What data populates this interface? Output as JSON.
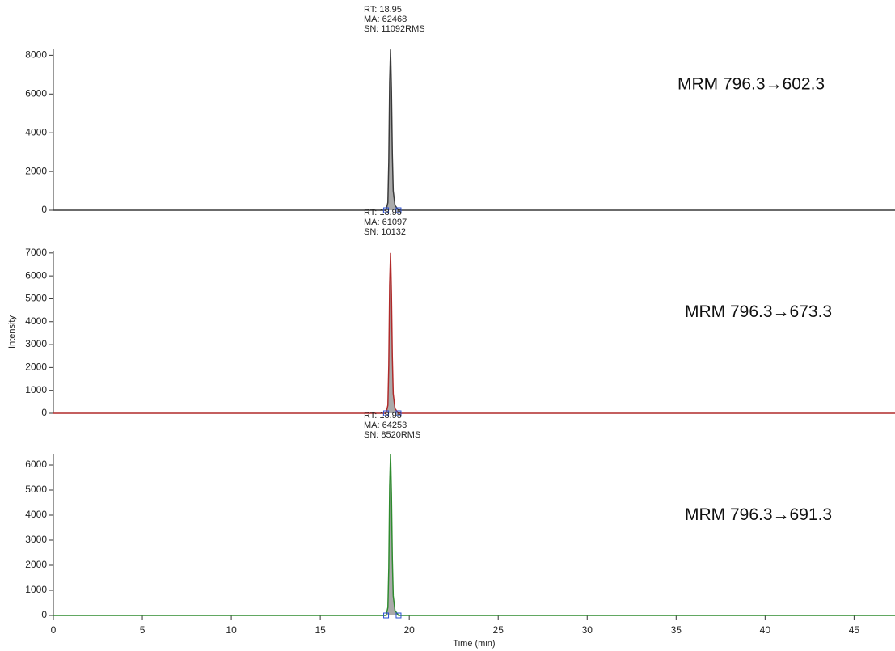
{
  "chart_data": [
    {
      "type": "line",
      "title": "MRM 796.3→602.3",
      "annotations": [
        "RT: 18.95",
        "MA: 62468",
        "SN: 11092RMS"
      ],
      "x": [
        0,
        18.7,
        18.8,
        18.85,
        18.9,
        18.95,
        19.0,
        19.05,
        19.1,
        19.2,
        19.4,
        47.3
      ],
      "values": [
        0,
        0,
        400,
        2500,
        6600,
        8300,
        6200,
        2900,
        1000,
        250,
        0,
        0
      ],
      "color": "#3a3a3a",
      "peak_limits": [
        18.7,
        19.4
      ],
      "xlim": [
        0,
        47.3
      ],
      "ylim": [
        0,
        8350
      ],
      "yticks": [
        0,
        2000,
        4000,
        6000,
        8000
      ]
    },
    {
      "type": "line",
      "title": "MRM 796.3→673.3",
      "ylabel": "Intensity",
      "annotations": [
        "RT: 18.95",
        "MA: 61097",
        "SN: 10132"
      ],
      "x": [
        0,
        18.7,
        18.8,
        18.85,
        18.9,
        18.95,
        19.0,
        19.05,
        19.1,
        19.2,
        19.4,
        47.3
      ],
      "values": [
        0,
        0,
        350,
        2100,
        5600,
        7000,
        5200,
        2450,
        850,
        200,
        0,
        0
      ],
      "color": "#b02a2a",
      "peak_limits": [
        18.7,
        19.4
      ],
      "xlim": [
        0,
        47.3
      ],
      "ylim": [
        0,
        7100
      ],
      "yticks": [
        0,
        1000,
        2000,
        3000,
        4000,
        5000,
        6000,
        7000
      ]
    },
    {
      "type": "line",
      "title": "MRM 796.3→691.3",
      "xlabel": "Time (min)",
      "annotations": [
        "RT: 18.95",
        "MA: 64253",
        "SN: 8520RMS"
      ],
      "x": [
        0,
        18.7,
        18.8,
        18.85,
        18.9,
        18.95,
        19.0,
        19.05,
        19.1,
        19.2,
        19.4,
        47.3
      ],
      "values": [
        0,
        0,
        320,
        1900,
        5150,
        6450,
        4800,
        2250,
        780,
        190,
        0,
        0
      ],
      "color": "#2e8b2e",
      "peak_limits": [
        18.7,
        19.4
      ],
      "xlim": [
        0,
        47.3
      ],
      "ylim": [
        0,
        6420
      ],
      "yticks": [
        0,
        1000,
        2000,
        3000,
        4000,
        5000,
        6000
      ],
      "xticks": [
        0,
        5,
        10,
        15,
        20,
        25,
        30,
        35,
        40,
        45
      ]
    }
  ]
}
